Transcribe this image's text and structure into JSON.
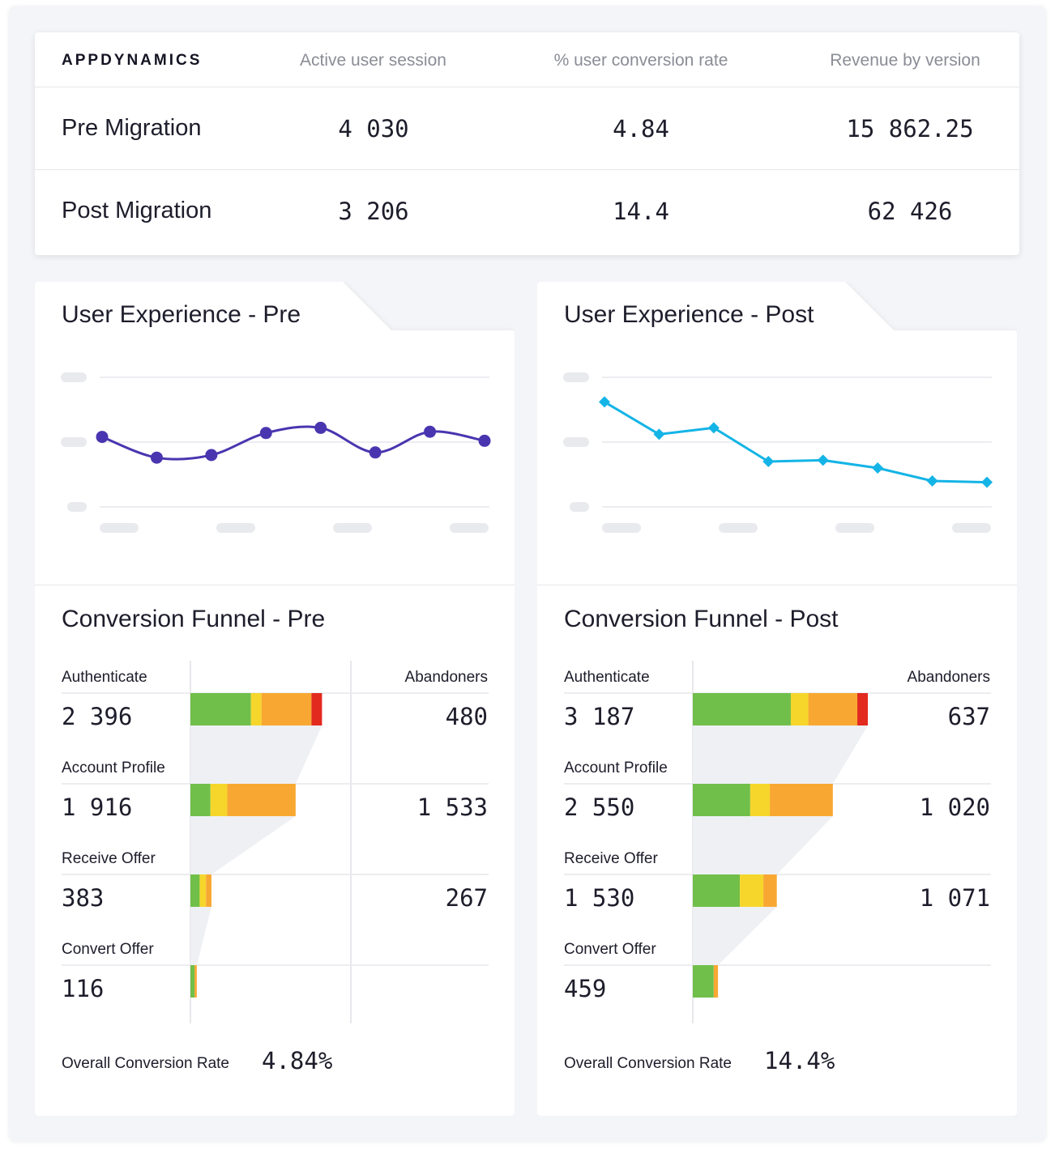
{
  "header": {
    "brand": "APPDYNAMICS",
    "columns": [
      "Active user session",
      "% user conversion rate",
      "Revenue by version"
    ]
  },
  "rows": [
    {
      "label": "Pre Migration",
      "values": [
        "4 030",
        "4.84",
        "15 862.25"
      ]
    },
    {
      "label": "Post Migration",
      "values": [
        "3 206",
        "14.4",
        "62 426"
      ]
    }
  ],
  "panels": {
    "pre": {
      "ux_title": "User Experience - Pre",
      "funnel_title": "Conversion Funnel - Pre",
      "abandoners_label": "Abandoners",
      "stages": [
        {
          "label": "Authenticate",
          "value": "2 396",
          "abandoners": "480"
        },
        {
          "label": "Account Profile",
          "value": "1 916",
          "abandoners": "1 533"
        },
        {
          "label": "Receive Offer",
          "value": "383",
          "abandoners": "267"
        },
        {
          "label": "Convert Offer",
          "value": "116",
          "abandoners": ""
        }
      ],
      "rate_label": "Overall Conversion Rate",
      "rate_value": "4.84%"
    },
    "post": {
      "ux_title": "User Experience - Post",
      "funnel_title": "Conversion Funnel - Post",
      "abandoners_label": "Abandoners",
      "stages": [
        {
          "label": "Authenticate",
          "value": "3 187",
          "abandoners": "637"
        },
        {
          "label": "Account Profile",
          "value": "2 550",
          "abandoners": "1 020"
        },
        {
          "label": "Receive Offer",
          "value": "1 530",
          "abandoners": "1 071"
        },
        {
          "label": "Convert Offer",
          "value": "459",
          "abandoners": ""
        }
      ],
      "rate_label": "Overall Conversion Rate",
      "rate_value": "14.4%"
    }
  },
  "colors": {
    "pre_line": "#4a35b0",
    "post_line": "#14b4e6",
    "green": "#70bf4a",
    "yellow": "#f6d62b",
    "orange": "#f8a832",
    "red": "#e22a1f"
  },
  "chart_data": [
    {
      "type": "line",
      "title": "User Experience - Pre",
      "x": [
        1,
        2,
        3,
        4,
        5,
        6,
        7,
        8
      ],
      "series": [
        {
          "name": "Pre",
          "values": [
            54,
            38,
            40,
            57,
            61,
            42,
            58,
            51
          ]
        }
      ],
      "ylim": [
        0,
        100
      ],
      "smooth": true,
      "marker": "circle"
    },
    {
      "type": "line",
      "title": "User Experience - Post",
      "x": [
        1,
        2,
        3,
        4,
        5,
        6,
        7,
        8
      ],
      "series": [
        {
          "name": "Post",
          "values": [
            81,
            56,
            61,
            35,
            36,
            30,
            20,
            19
          ]
        }
      ],
      "ylim": [
        0,
        100
      ],
      "smooth": false,
      "marker": "diamond"
    },
    {
      "type": "bar",
      "title": "Conversion Funnel - Pre",
      "categories": [
        "Authenticate",
        "Account Profile",
        "Receive Offer",
        "Convert Offer"
      ],
      "values": [
        2396,
        1916,
        383,
        116
      ],
      "segments": [
        [
          0.46,
          0.08,
          0.38,
          0.08
        ],
        [
          0.19,
          0.16,
          0.65,
          0
        ],
        [
          0.44,
          0.3,
          0.26,
          0
        ],
        [
          0.65,
          0,
          0.35,
          0
        ]
      ],
      "segment_names": [
        "green",
        "yellow",
        "orange",
        "red"
      ],
      "abandoners": [
        480,
        1533,
        267
      ]
    },
    {
      "type": "bar",
      "title": "Conversion Funnel - Post",
      "categories": [
        "Authenticate",
        "Account Profile",
        "Receive Offer",
        "Convert Offer"
      ],
      "values": [
        3187,
        2550,
        1530,
        459
      ],
      "segments": [
        [
          0.56,
          0.1,
          0.28,
          0.06
        ],
        [
          0.41,
          0.14,
          0.45,
          0
        ],
        [
          0.56,
          0.28,
          0.16,
          0
        ],
        [
          0.83,
          0,
          0.17,
          0
        ]
      ],
      "segment_names": [
        "green",
        "yellow",
        "orange",
        "red"
      ],
      "abandoners": [
        637,
        1020,
        1071
      ]
    }
  ]
}
